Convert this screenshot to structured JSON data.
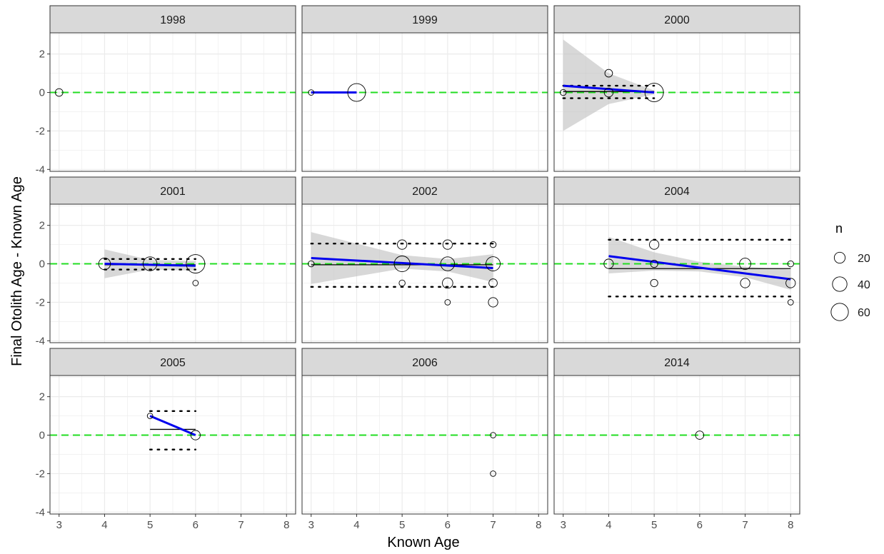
{
  "chart_data": {
    "type": "scatter",
    "xlabel": "Known Age",
    "ylabel": "Final Otolith Age - Known Age",
    "xlim": [
      2.8,
      8.2
    ],
    "ylim": [
      -4.1,
      3.1
    ],
    "x_ticks": [
      3,
      4,
      5,
      6,
      7,
      8
    ],
    "y_ticks": [
      -4,
      -2,
      0,
      2
    ],
    "grid": true,
    "reference_line": {
      "y": 0,
      "color": "#22dd22",
      "style": "dashed"
    },
    "legend": {
      "title": "n",
      "position": "right",
      "entries": [
        {
          "label": "20",
          "n": 20
        },
        {
          "label": "40",
          "n": 40
        },
        {
          "label": "60",
          "n": 60
        }
      ]
    },
    "colors": {
      "fit": "#0000ee",
      "mean": "#000000",
      "band": "#bebebe",
      "reference": "#22dd22",
      "strip": "#d9d9d9"
    },
    "panels": [
      {
        "title": "1998",
        "points": [
          {
            "x": 3,
            "y": 0,
            "n": 8
          }
        ]
      },
      {
        "title": "1999",
        "points": [
          {
            "x": 3,
            "y": 0,
            "n": 3
          },
          {
            "x": 4,
            "y": 0,
            "n": 64
          }
        ],
        "mean_line": {
          "x": [
            3,
            4
          ],
          "y": 0
        },
        "fit_line": {
          "x": [
            3,
            4
          ],
          "y": [
            0,
            0
          ]
        }
      },
      {
        "title": "2000",
        "points": [
          {
            "x": 3,
            "y": 0,
            "n": 4
          },
          {
            "x": 4,
            "y": 1,
            "n": 8
          },
          {
            "x": 4,
            "y": 0,
            "n": 12
          },
          {
            "x": 5,
            "y": 0,
            "n": 70
          }
        ],
        "mean_line": {
          "x": [
            3,
            5
          ],
          "y": 0.05
        },
        "dotted_lines": {
          "x": [
            3,
            5
          ],
          "y": [
            0.35,
            -0.3
          ]
        },
        "fit_line": {
          "x": [
            3,
            5
          ],
          "y": [
            0.35,
            0
          ]
        },
        "confidence_band": {
          "x": [
            3,
            4,
            5
          ],
          "upper": [
            2.75,
            1.0,
            0.1
          ],
          "lower": [
            -2.0,
            -0.6,
            -0.1
          ]
        }
      },
      {
        "title": "2001",
        "points": [
          {
            "x": 4,
            "y": 0,
            "n": 24
          },
          {
            "x": 5,
            "y": 0,
            "n": 36
          },
          {
            "x": 6,
            "y": 0,
            "n": 70
          },
          {
            "x": 6,
            "y": -1,
            "n": 3
          }
        ],
        "mean_line": {
          "x": [
            4,
            6
          ],
          "y": -0.05
        },
        "dotted_lines": {
          "x": [
            4,
            6
          ],
          "y": [
            0.25,
            -0.3
          ]
        },
        "fit_line": {
          "x": [
            4,
            6
          ],
          "y": [
            0,
            -0.1
          ]
        },
        "confidence_band": {
          "x": [
            4,
            5,
            6
          ],
          "upper": [
            0.75,
            0.2,
            0.15
          ],
          "lower": [
            -0.75,
            -0.3,
            -0.35
          ]
        }
      },
      {
        "title": "2002",
        "points": [
          {
            "x": 3,
            "y": 0,
            "n": 4
          },
          {
            "x": 5,
            "y": 1,
            "n": 14
          },
          {
            "x": 5,
            "y": 0,
            "n": 48
          },
          {
            "x": 5,
            "y": -1,
            "n": 4
          },
          {
            "x": 6,
            "y": 1,
            "n": 14
          },
          {
            "x": 6,
            "y": 0,
            "n": 36
          },
          {
            "x": 6,
            "y": -1,
            "n": 18
          },
          {
            "x": 6,
            "y": -2,
            "n": 3
          },
          {
            "x": 7,
            "y": 1,
            "n": 4
          },
          {
            "x": 7,
            "y": 0,
            "n": 38
          },
          {
            "x": 7,
            "y": -1,
            "n": 10
          },
          {
            "x": 7,
            "y": -2,
            "n": 14
          }
        ],
        "mean_line": {
          "x": [
            3,
            7
          ],
          "y": -0.05
        },
        "dotted_lines": {
          "x": [
            3,
            7
          ],
          "y": [
            1.05,
            -1.2
          ]
        },
        "fit_line": {
          "x": [
            3,
            7
          ],
          "y": [
            0.3,
            -0.22
          ]
        },
        "confidence_band": {
          "x": [
            3,
            5,
            6,
            7
          ],
          "upper": [
            1.65,
            0.45,
            0.25,
            0.5
          ],
          "lower": [
            -1.05,
            -0.25,
            -0.4,
            -0.95
          ]
        }
      },
      {
        "title": "2004",
        "points": [
          {
            "x": 4,
            "y": 0,
            "n": 14
          },
          {
            "x": 5,
            "y": 1,
            "n": 14
          },
          {
            "x": 5,
            "y": 0,
            "n": 7
          },
          {
            "x": 5,
            "y": -1,
            "n": 7
          },
          {
            "x": 7,
            "y": 0,
            "n": 22
          },
          {
            "x": 7,
            "y": -1,
            "n": 14
          },
          {
            "x": 8,
            "y": 0,
            "n": 4
          },
          {
            "x": 8,
            "y": -1,
            "n": 14
          },
          {
            "x": 8,
            "y": -2,
            "n": 3
          }
        ],
        "mean_line": {
          "x": [
            4,
            8
          ],
          "y": -0.25
        },
        "dotted_lines": {
          "x": [
            4,
            8
          ],
          "y": [
            1.25,
            -1.7
          ]
        },
        "fit_line": {
          "x": [
            4,
            8
          ],
          "y": [
            0.4,
            -0.8
          ]
        },
        "confidence_band": {
          "x": [
            4,
            5,
            6,
            7,
            8
          ],
          "upper": [
            1.4,
            0.6,
            0.1,
            -0.15,
            -0.3
          ],
          "lower": [
            -0.5,
            -0.35,
            -0.4,
            -0.7,
            -1.35
          ]
        }
      },
      {
        "title": "2005",
        "points": [
          {
            "x": 5,
            "y": 1,
            "n": 3
          },
          {
            "x": 6,
            "y": 0,
            "n": 14
          }
        ],
        "mean_line": {
          "x": [
            5,
            6
          ],
          "y": 0.3
        },
        "dotted_lines": {
          "x": [
            5,
            6
          ],
          "y": [
            1.25,
            -0.75
          ]
        },
        "fit_line": {
          "x": [
            5,
            6
          ],
          "y": [
            1,
            0
          ]
        }
      },
      {
        "title": "2006",
        "points": [
          {
            "x": 7,
            "y": 0,
            "n": 3
          },
          {
            "x": 7,
            "y": -2,
            "n": 3
          }
        ]
      },
      {
        "title": "2014",
        "points": [
          {
            "x": 6,
            "y": 0,
            "n": 10
          }
        ]
      }
    ]
  }
}
